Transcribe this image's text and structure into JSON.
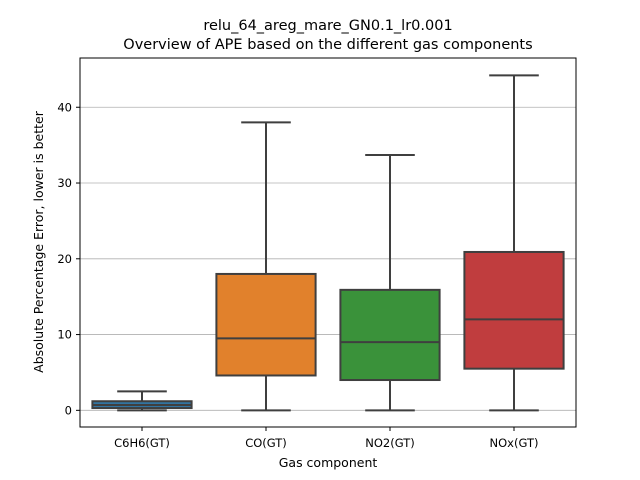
{
  "chart_data": {
    "type": "box",
    "title": "relu_64_areg_mare_GN0.1_lr0.001",
    "subtitle": "Overview of APE based on the different gas components",
    "xlabel": "Gas component",
    "ylabel": "Absolute Percentage Error, lower is better",
    "ylim": [
      -2.2,
      46.5
    ],
    "yticks": [
      0,
      10,
      20,
      30,
      40
    ],
    "ytick_labels": [
      "0",
      "10",
      "20",
      "30",
      "40"
    ],
    "grid": "horizontal",
    "categories": [
      "C6H6(GT)",
      "CO(GT)",
      "NO2(GT)",
      "NOx(GT)"
    ],
    "boxes": [
      {
        "category": "C6H6(GT)",
        "color": "#3274a1",
        "whisker_low": 0.0,
        "q1": 0.3,
        "median": 0.7,
        "q3": 1.2,
        "whisker_high": 2.5
      },
      {
        "category": "CO(GT)",
        "color": "#e1812c",
        "whisker_low": 0.0,
        "q1": 4.6,
        "median": 9.5,
        "q3": 18.0,
        "whisker_high": 38.0
      },
      {
        "category": "NO2(GT)",
        "color": "#3a923a",
        "whisker_low": 0.0,
        "q1": 4.0,
        "median": 9.0,
        "q3": 15.9,
        "whisker_high": 33.7
      },
      {
        "category": "NOx(GT)",
        "color": "#c03d3e",
        "whisker_low": 0.0,
        "q1": 5.5,
        "median": 12.0,
        "q3": 20.9,
        "whisker_high": 44.2
      }
    ]
  }
}
